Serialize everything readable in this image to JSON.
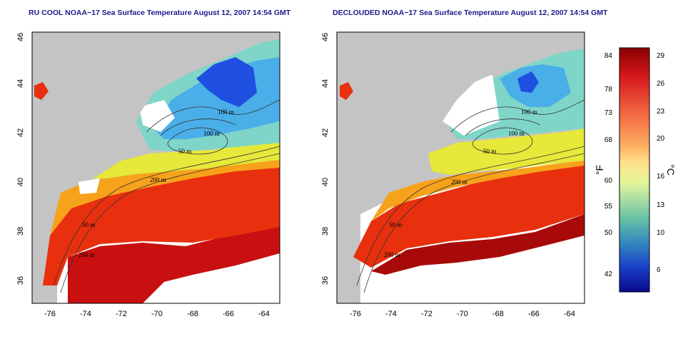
{
  "left_panel": {
    "title": "RU COOL NOAA−17 Sea Surface Temperature August 12, 2007 14:54 GMT",
    "x_ticks": [
      "-76",
      "-74",
      "-72",
      "-70",
      "-68",
      "-66",
      "-64"
    ],
    "y_ticks": [
      "46",
      "44",
      "42",
      "40",
      "38",
      "36"
    ],
    "contour_labels": [
      "100 m",
      "100 m",
      "50 m",
      "200 m",
      "50 m",
      "200 m"
    ]
  },
  "right_panel": {
    "title": "DECLOUDED NOAA−17 Sea Surface Temperature August 12, 2007 14:54 GMT",
    "x_ticks": [
      "-76",
      "-74",
      "-72",
      "-70",
      "-68",
      "-66",
      "-64"
    ],
    "y_ticks": [
      "46",
      "44",
      "42",
      "40",
      "38",
      "36"
    ],
    "contour_labels": [
      "100 m",
      "100 m",
      "50 m",
      "200 m",
      "50 m",
      "200 m"
    ]
  },
  "colorbar": {
    "fahrenheit_labels": [
      "84",
      "78",
      "73",
      "68",
      "60",
      "55",
      "50",
      "42"
    ],
    "celsius_labels": [
      "29",
      "26",
      "23",
      "20",
      "16",
      "13",
      "10",
      "6"
    ],
    "unit_f": "°F",
    "unit_c": "°C",
    "colors": [
      "#8b0000",
      "#d7191c",
      "#f46d43",
      "#fdae61",
      "#fee08b",
      "#e6f598",
      "#abdda4",
      "#66c2a5",
      "#3288bd",
      "#1a3fc8",
      "#08088a"
    ]
  },
  "colors": {
    "land": "#c4c4c4",
    "cloud": "#ffffff",
    "gulf_stream": "#e8260e",
    "shelf_warm": "#f7a21b",
    "gulf_maine": "#4aaee8",
    "cold_core": "#1f4fe0"
  }
}
